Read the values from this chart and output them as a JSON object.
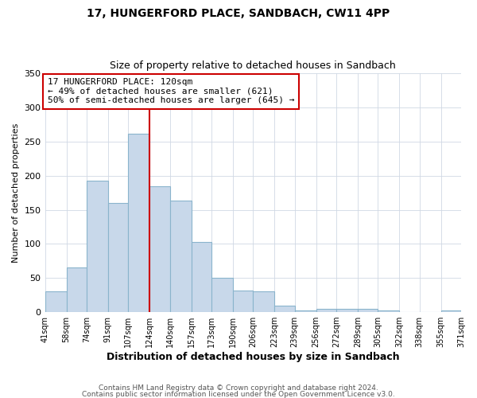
{
  "title": "17, HUNGERFORD PLACE, SANDBACH, CW11 4PP",
  "subtitle": "Size of property relative to detached houses in Sandbach",
  "xlabel": "Distribution of detached houses by size in Sandbach",
  "ylabel": "Number of detached properties",
  "bins": [
    41,
    58,
    74,
    91,
    107,
    124,
    140,
    157,
    173,
    190,
    206,
    223,
    239,
    256,
    272,
    289,
    305,
    322,
    338,
    355,
    371
  ],
  "bar_heights": [
    30,
    65,
    193,
    160,
    261,
    184,
    163,
    103,
    50,
    32,
    30,
    10,
    3,
    5,
    5,
    5,
    2,
    0,
    0,
    3
  ],
  "bar_color": "#c8d8ea",
  "bar_edge_color": "#8ab4cc",
  "vline_x": 124,
  "vline_color": "#cc0000",
  "ylim": [
    0,
    350
  ],
  "annotation_title": "17 HUNGERFORD PLACE: 120sqm",
  "annotation_line1": "← 49% of detached houses are smaller (621)",
  "annotation_line2": "50% of semi-detached houses are larger (645) →",
  "annotation_box_color": "#ffffff",
  "annotation_box_edge": "#cc0000",
  "footer1": "Contains HM Land Registry data © Crown copyright and database right 2024.",
  "footer2": "Contains public sector information licensed under the Open Government Licence v3.0.",
  "background_color": "#ffffff",
  "plot_bg_color": "#ffffff",
  "grid_color": "#d0d8e4"
}
